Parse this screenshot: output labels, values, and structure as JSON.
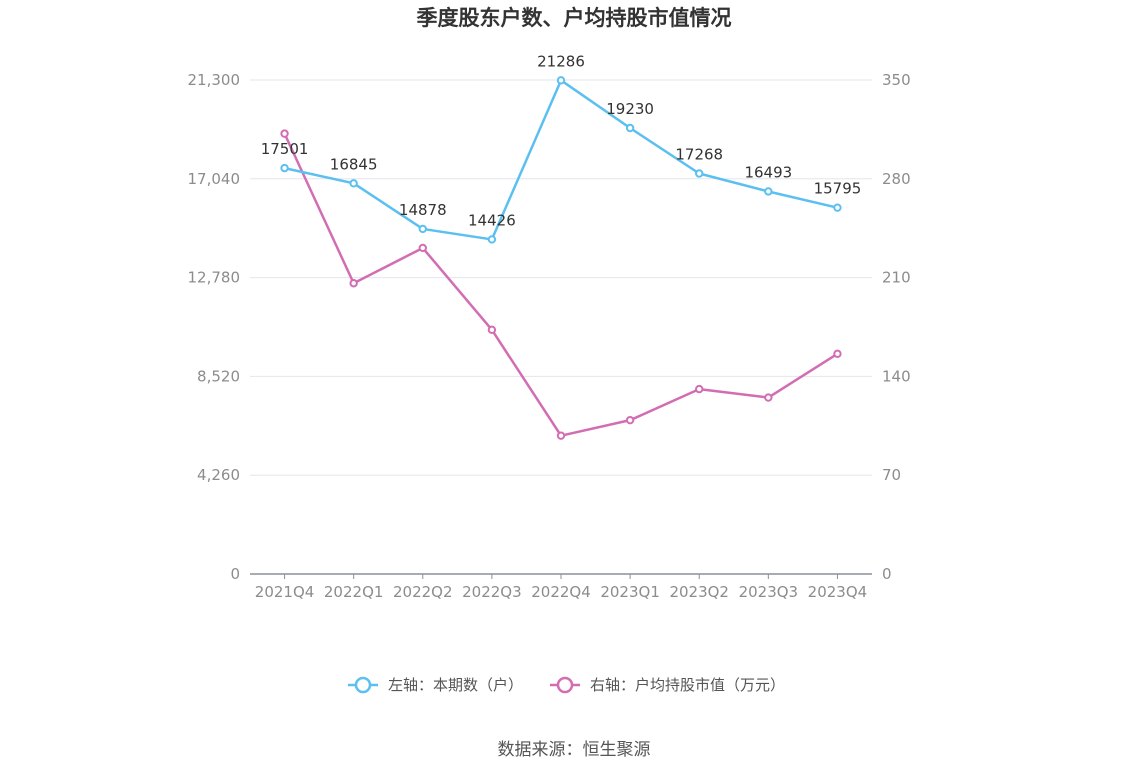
{
  "chart_data": {
    "type": "line",
    "title": "季度股东户数、户均持股市值情况",
    "categories": [
      "2021Q4",
      "2022Q1",
      "2022Q2",
      "2022Q3",
      "2022Q4",
      "2023Q1",
      "2023Q2",
      "2023Q3",
      "2023Q4"
    ],
    "left_axis": {
      "ylim": [
        0,
        21300
      ],
      "ticks": [
        "0",
        "4,260",
        "8,520",
        "12,780",
        "17,040",
        "21,300"
      ]
    },
    "right_axis": {
      "ylim": [
        0,
        350
      ],
      "ticks": [
        "0",
        "70",
        "140",
        "210",
        "280",
        "350"
      ]
    },
    "series": [
      {
        "name": "左轴：本期数（户）",
        "axis": "left",
        "color": "#5bc0f0",
        "values": [
          17501,
          16845,
          14878,
          14426,
          21286,
          19230,
          17268,
          16493,
          15795
        ],
        "show_labels": true
      },
      {
        "name": "右轴：户均持股市值（万元）",
        "axis": "right",
        "color": "#d36db3",
        "values": [
          312,
          206,
          231,
          173,
          98,
          109,
          131,
          125,
          156
        ],
        "show_labels": false
      }
    ],
    "grid": true,
    "legend_position": "bottom-center"
  },
  "source": "数据来源：恒生聚源"
}
